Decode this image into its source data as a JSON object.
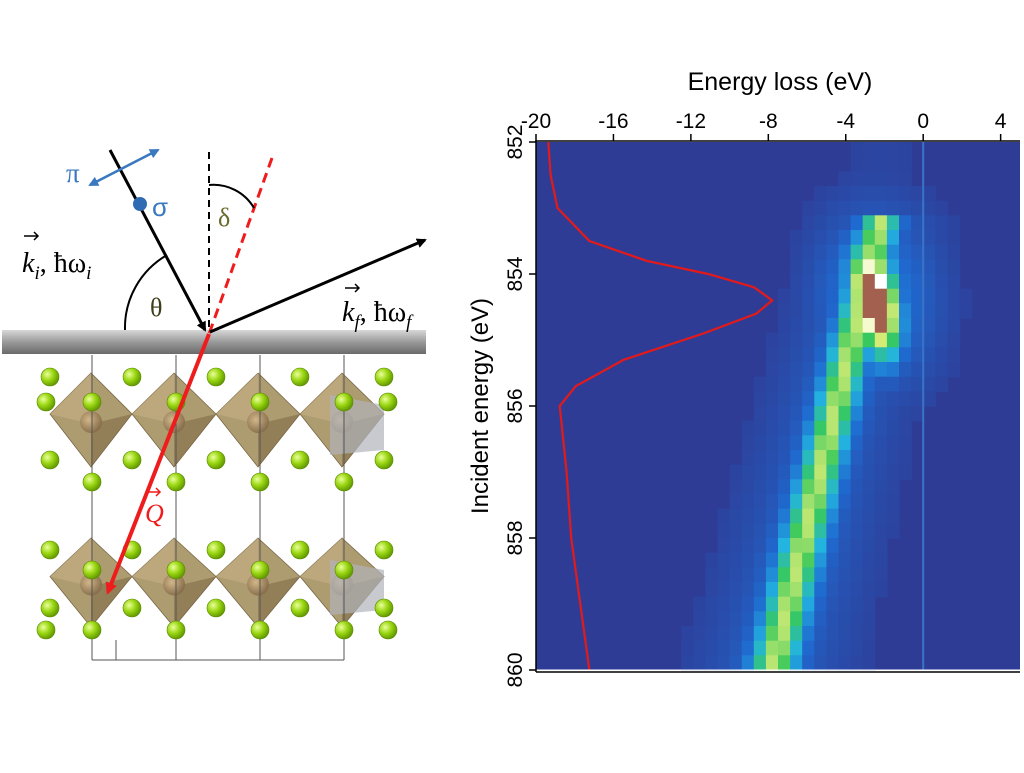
{
  "scattering_diagram": {
    "pi_label": "π",
    "sigma_label": "σ",
    "theta_label": "θ",
    "delta_label": "δ",
    "q_label": "Q",
    "incident": {
      "k": "k",
      "k_sub": "i",
      "sep": ", ħω",
      "w_sub": "i"
    },
    "outgoing": {
      "k": "k",
      "k_sub": "f",
      "sep": ", ħω",
      "w_sub": "f"
    },
    "colors": {
      "polarization": "#3a78c0",
      "q_vector": "#ee1c1c",
      "beam": "#000000",
      "atoms": "#8fd000",
      "octahedra": "#a89466",
      "gray_octahedra": "#b0b4ba"
    }
  },
  "chart_data": {
    "type": "heatmap",
    "xlabel": "Energy loss (eV)",
    "ylabel": "Incident energy (eV)",
    "xlim": [
      -20,
      5
    ],
    "ylim": [
      852,
      860
    ],
    "x_ticks": [
      "-20",
      "-16",
      "-12",
      "-8",
      "-4",
      "0",
      "4"
    ],
    "y_ticks": [
      "852",
      "854",
      "856",
      "858",
      "860"
    ],
    "colormap": [
      "#2e3c96",
      "#1f6ad0",
      "#23b4e0",
      "#38c95a",
      "#e7f07a",
      "#ffffff",
      "#a4604e"
    ],
    "features": [
      {
        "name": "resonance",
        "center_energy_loss": -2.5,
        "center_incident_energy": 854.4
      },
      {
        "name": "fluorescence",
        "from": {
          "energy_loss": -2.2,
          "incident_energy": 853.2
        },
        "to": {
          "energy_loss": -7.8,
          "incident_energy": 860
        }
      },
      {
        "name": "elastic",
        "energy_loss": 0
      }
    ],
    "xas_profile": {
      "color": "#e41a1a",
      "peak_incident_energy": 854.4,
      "points": [
        {
          "incident_energy": 852.0,
          "intensity": 0.02
        },
        {
          "incident_energy": 852.5,
          "intensity": 0.03
        },
        {
          "incident_energy": 853.0,
          "intensity": 0.06
        },
        {
          "incident_energy": 853.5,
          "intensity": 0.2
        },
        {
          "incident_energy": 853.8,
          "intensity": 0.45
        },
        {
          "incident_energy": 854.0,
          "intensity": 0.72
        },
        {
          "incident_energy": 854.2,
          "intensity": 0.92
        },
        {
          "incident_energy": 854.4,
          "intensity": 1.0
        },
        {
          "incident_energy": 854.6,
          "intensity": 0.93
        },
        {
          "incident_energy": 854.9,
          "intensity": 0.7
        },
        {
          "incident_energy": 855.3,
          "intensity": 0.35
        },
        {
          "incident_energy": 855.7,
          "intensity": 0.14
        },
        {
          "incident_energy": 856.0,
          "intensity": 0.07
        },
        {
          "incident_energy": 857.0,
          "intensity": 0.1
        },
        {
          "incident_energy": 858.0,
          "intensity": 0.12
        },
        {
          "incident_energy": 859.0,
          "intensity": 0.16
        },
        {
          "incident_energy": 860.0,
          "intensity": 0.2
        }
      ]
    }
  }
}
